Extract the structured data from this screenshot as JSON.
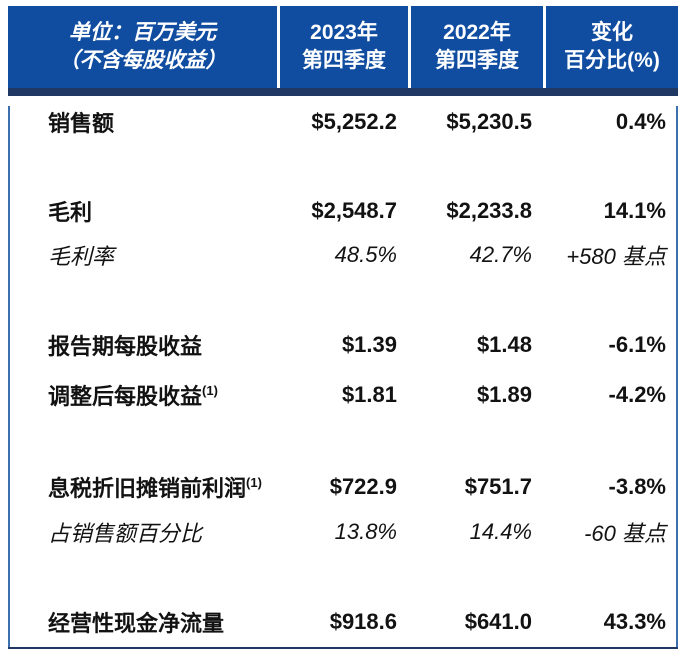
{
  "colors": {
    "header_blue": "#104DA1",
    "dark_navy": "#1F3864",
    "border_blue": "#3B70AC",
    "header_text": "#ffffff",
    "body_text": "#121212"
  },
  "table": {
    "unit_header": {
      "line1": "单位：百万美元",
      "line2": "（不含每股收益）"
    },
    "columns": [
      {
        "line1": "2023年",
        "line2": "第四季度"
      },
      {
        "line1": "2022年",
        "line2": "第四季度"
      },
      {
        "line1": "变化",
        "line2": "百分比(%)"
      }
    ],
    "rows": [
      {
        "label": "销售额",
        "sup": "",
        "q4_2023": "$5,252.2",
        "q4_2022": "$5,230.5",
        "change": "0.4%"
      },
      {
        "label": "毛利",
        "sup": "",
        "q4_2023": "$2,548.7",
        "q4_2022": "$2,233.8",
        "change": "14.1%"
      },
      {
        "label": "毛利率",
        "sup": "",
        "q4_2023": "48.5%",
        "q4_2022": "42.7%",
        "change": "+580 基点"
      },
      {
        "label": "报告期每股收益",
        "sup": "",
        "q4_2023": "$1.39",
        "q4_2022": "$1.48",
        "change": "-6.1%"
      },
      {
        "label": "调整后每股收益",
        "sup": "(1)",
        "q4_2023": "$1.81",
        "q4_2022": "$1.89",
        "change": "-4.2%"
      },
      {
        "label": "息税折旧摊销前利润",
        "sup": "(1)",
        "q4_2023": "$722.9",
        "q4_2022": "$751.7",
        "change": "-3.8%"
      },
      {
        "label": "占销售额百分比",
        "sup": "",
        "q4_2023": "13.8%",
        "q4_2022": "14.4%",
        "change": "-60 基点"
      },
      {
        "label": "经营性现金净流量",
        "sup": "",
        "q4_2023": "$918.6",
        "q4_2022": "$641.0",
        "change": "43.3%"
      }
    ]
  }
}
